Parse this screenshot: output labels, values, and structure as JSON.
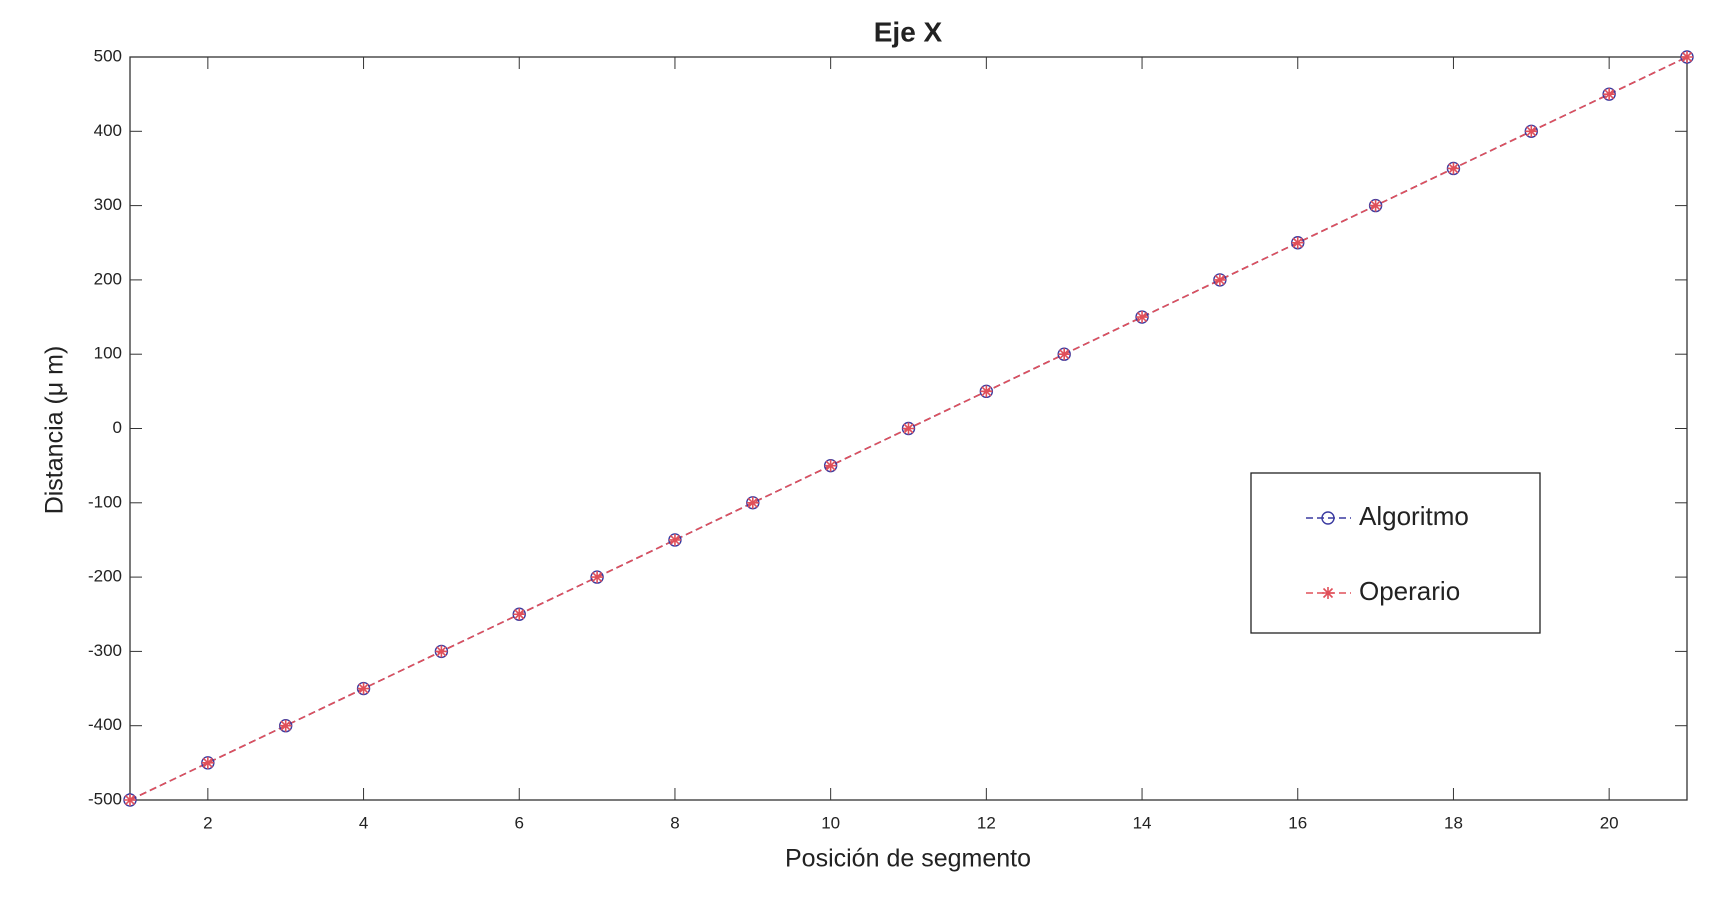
{
  "chart_data": {
    "type": "line",
    "title": "Eje X",
    "xlabel": "Posición de segmento",
    "ylabel": "Distancia (μ m)",
    "x": [
      1,
      2,
      3,
      4,
      5,
      6,
      7,
      8,
      9,
      10,
      11,
      12,
      13,
      14,
      15,
      16,
      17,
      18,
      19,
      20,
      21
    ],
    "series": [
      {
        "name": "Algoritmo",
        "color": "#3a3aa0",
        "marker": "circle",
        "values": [
          -500,
          -450,
          -400,
          -350,
          -300,
          -250,
          -200,
          -150,
          -100,
          -50,
          0,
          50,
          100,
          150,
          200,
          250,
          300,
          350,
          400,
          450,
          500
        ]
      },
      {
        "name": "Operario",
        "color": "#e0505a",
        "marker": "asterisk",
        "values": [
          -500,
          -450,
          -400,
          -350,
          -300,
          -250,
          -200,
          -150,
          -100,
          -50,
          0,
          50,
          100,
          150,
          200,
          250,
          300,
          350,
          400,
          450,
          500
        ]
      }
    ],
    "xlim": [
      1,
      21
    ],
    "xticks": [
      2,
      4,
      6,
      8,
      10,
      12,
      14,
      16,
      18,
      20
    ],
    "ylim": [
      -500,
      500
    ],
    "yticks": [
      -500,
      -400,
      -300,
      -200,
      -100,
      0,
      100,
      200,
      300,
      400,
      500
    ],
    "legend": "right"
  }
}
